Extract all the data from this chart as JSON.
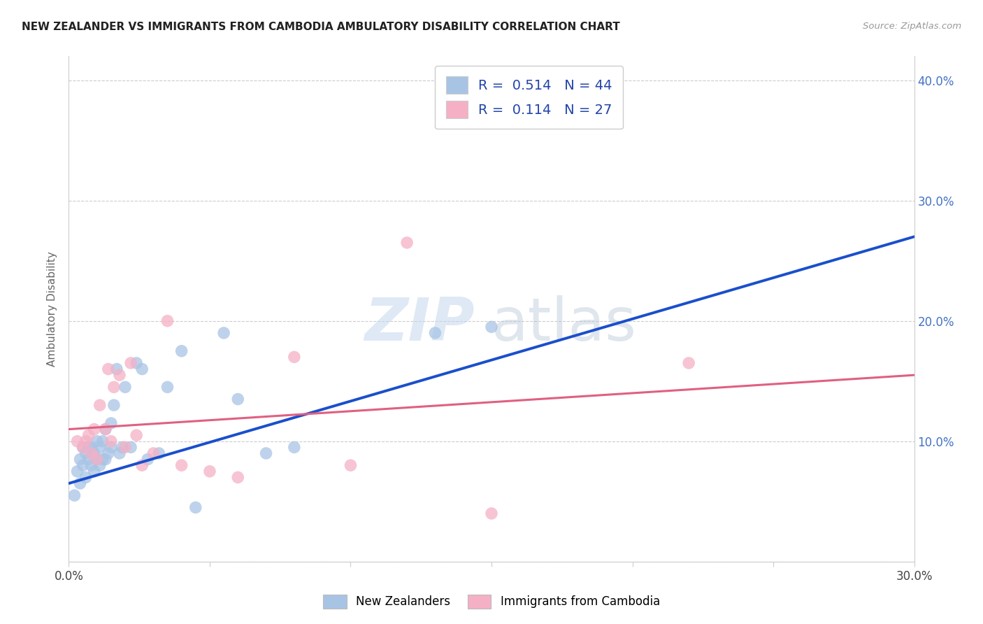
{
  "title": "NEW ZEALANDER VS IMMIGRANTS FROM CAMBODIA AMBULATORY DISABILITY CORRELATION CHART",
  "source": "Source: ZipAtlas.com",
  "ylabel": "Ambulatory Disability",
  "xmin": 0.0,
  "xmax": 0.3,
  "ymin": 0.0,
  "ymax": 0.42,
  "blue_R": "0.514",
  "blue_N": "44",
  "pink_R": "0.114",
  "pink_N": "27",
  "blue_color": "#a8c4e5",
  "pink_color": "#f5b0c5",
  "blue_line_color": "#1a4fcc",
  "pink_line_color": "#e06080",
  "dashed_line_color": "#aabbd0",
  "background_color": "#ffffff",
  "legend_label_blue": "New Zealanders",
  "legend_label_pink": "Immigrants from Cambodia",
  "watermark_zip": "ZIP",
  "watermark_atlas": "atlas",
  "ytick_positions": [
    0.0,
    0.1,
    0.2,
    0.3,
    0.4
  ],
  "ytick_labels": [
    "",
    "10.0%",
    "20.0%",
    "30.0%",
    "40.0%"
  ],
  "xtick_positions": [
    0.0,
    0.05,
    0.1,
    0.15,
    0.2,
    0.25,
    0.3
  ],
  "xtick_labels": [
    "0.0%",
    "",
    "",
    "",
    "",
    "",
    "30.0%"
  ],
  "blue_scatter_x": [
    0.002,
    0.003,
    0.004,
    0.004,
    0.005,
    0.005,
    0.006,
    0.006,
    0.007,
    0.007,
    0.008,
    0.008,
    0.009,
    0.009,
    0.01,
    0.01,
    0.011,
    0.011,
    0.012,
    0.012,
    0.013,
    0.013,
    0.014,
    0.015,
    0.015,
    0.016,
    0.017,
    0.018,
    0.019,
    0.02,
    0.022,
    0.024,
    0.026,
    0.028,
    0.032,
    0.035,
    0.04,
    0.045,
    0.055,
    0.06,
    0.07,
    0.08,
    0.13,
    0.15
  ],
  "blue_scatter_y": [
    0.055,
    0.075,
    0.085,
    0.065,
    0.095,
    0.08,
    0.09,
    0.07,
    0.085,
    0.095,
    0.08,
    0.095,
    0.075,
    0.09,
    0.1,
    0.085,
    0.08,
    0.095,
    0.085,
    0.1,
    0.11,
    0.085,
    0.09,
    0.115,
    0.095,
    0.13,
    0.16,
    0.09,
    0.095,
    0.145,
    0.095,
    0.165,
    0.16,
    0.085,
    0.09,
    0.145,
    0.175,
    0.045,
    0.19,
    0.135,
    0.09,
    0.095,
    0.19,
    0.195
  ],
  "pink_scatter_x": [
    0.003,
    0.005,
    0.006,
    0.007,
    0.008,
    0.009,
    0.01,
    0.011,
    0.013,
    0.014,
    0.015,
    0.016,
    0.018,
    0.02,
    0.022,
    0.024,
    0.026,
    0.03,
    0.035,
    0.04,
    0.05,
    0.06,
    0.08,
    0.1,
    0.12,
    0.15,
    0.22
  ],
  "pink_scatter_y": [
    0.1,
    0.095,
    0.1,
    0.105,
    0.09,
    0.11,
    0.085,
    0.13,
    0.11,
    0.16,
    0.1,
    0.145,
    0.155,
    0.095,
    0.165,
    0.105,
    0.08,
    0.09,
    0.2,
    0.08,
    0.075,
    0.07,
    0.17,
    0.08,
    0.265,
    0.04,
    0.165
  ],
  "blue_trend_x0": 0.0,
  "blue_trend_y0": 0.065,
  "blue_trend_x1": 0.3,
  "blue_trend_y1": 0.27,
  "pink_trend_x0": 0.0,
  "pink_trend_y0": 0.11,
  "pink_trend_x1": 0.3,
  "pink_trend_y1": 0.155,
  "dashed_trend_x0": 0.0,
  "dashed_trend_y0": 0.065,
  "dashed_trend_x1": 0.3,
  "dashed_trend_y1": 0.27,
  "legend_text_color": "#333366",
  "legend_r_color": "#4472c4",
  "legend_n_color": "#4472c4"
}
